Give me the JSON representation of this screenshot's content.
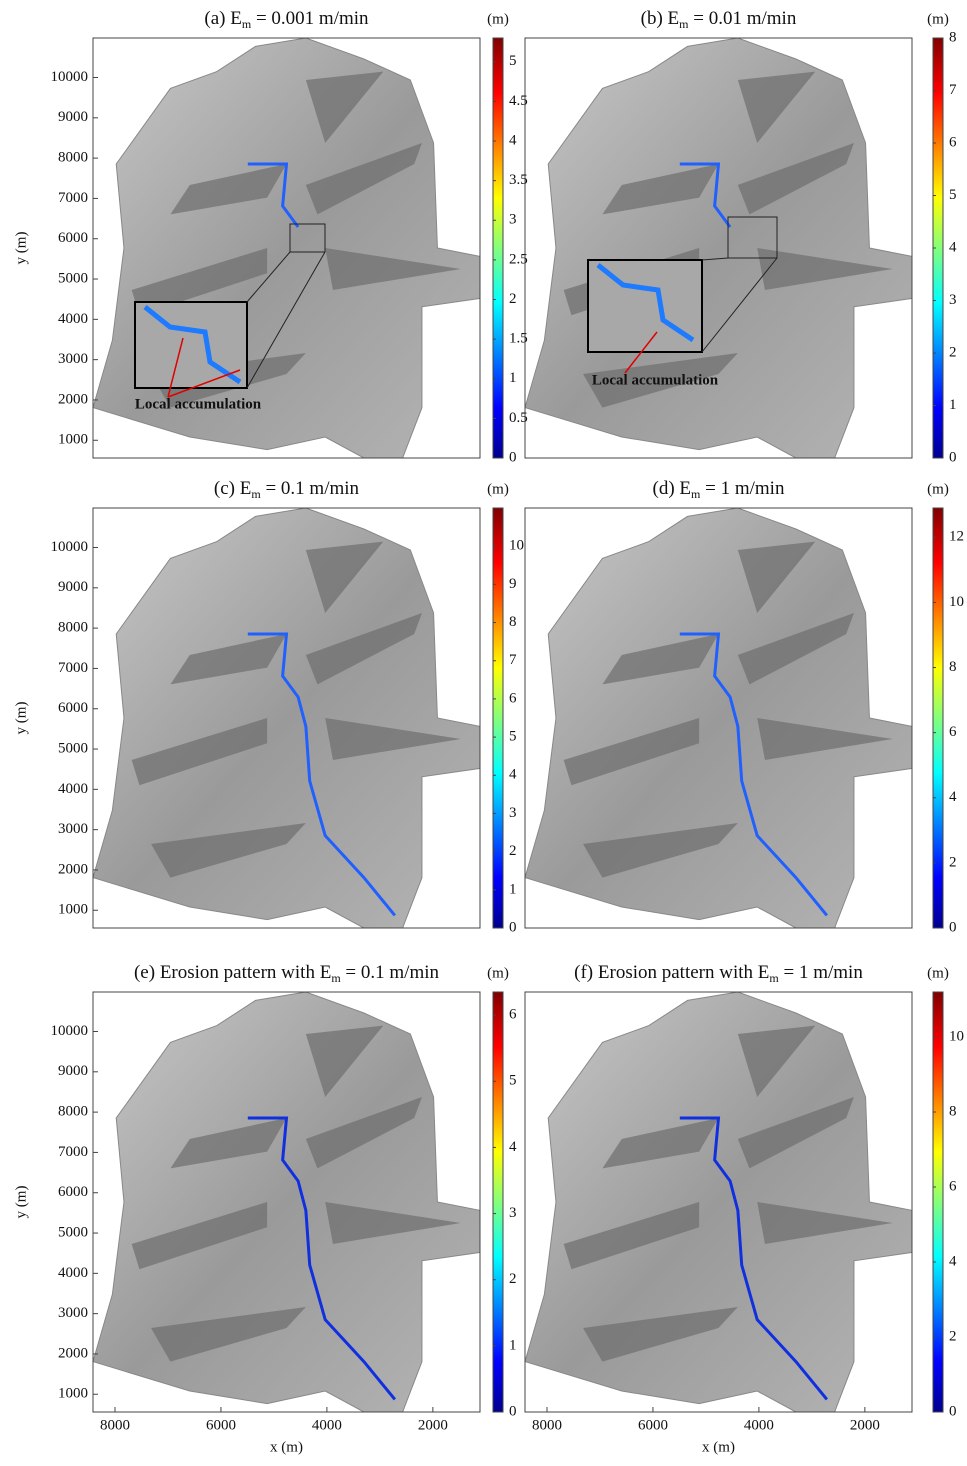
{
  "panels": [
    {
      "title": [
        "(a) E",
        "m",
        " = 0.001 m/min"
      ],
      "ylabel": "y (m)",
      "ylim": [
        560,
        10980
      ],
      "yticks": [
        1000,
        2000,
        3000,
        4000,
        5000,
        6000,
        7000,
        8000,
        9000,
        10000
      ],
      "colorbar": {
        "unit": "(m)",
        "lim": [
          0,
          5.3
        ],
        "ticks": [
          0,
          0.5,
          1,
          1.5,
          2,
          2.5,
          3,
          3.5,
          4,
          4.5,
          5
        ]
      },
      "annotation": "Local accumulation"
    },
    {
      "title": [
        "(b) E",
        "m",
        " = 0.01 m/min"
      ],
      "colorbar": {
        "unit": "(m)",
        "lim": [
          0,
          8
        ],
        "ticks": [
          0,
          1,
          2,
          3,
          4,
          5,
          6,
          7,
          8
        ]
      },
      "annotation": "Local accumulation"
    },
    {
      "title": [
        "(c) E",
        "m",
        " = 0.1 m/min"
      ],
      "ylabel": "y (m)",
      "ylim": [
        560,
        10980
      ],
      "yticks": [
        1000,
        2000,
        3000,
        4000,
        5000,
        6000,
        7000,
        8000,
        9000,
        10000
      ],
      "colorbar": {
        "unit": "(m)",
        "lim": [
          0,
          11
        ],
        "ticks": [
          0,
          1,
          2,
          3,
          4,
          5,
          6,
          7,
          8,
          9,
          10
        ]
      }
    },
    {
      "title": [
        "(d) E",
        "m",
        " = 1 m/min"
      ],
      "colorbar": {
        "unit": "(m)",
        "lim": [
          0,
          12.9
        ],
        "ticks": [
          0,
          2,
          4,
          6,
          8,
          10,
          12
        ]
      }
    },
    {
      "title": [
        "(e) Erosion pattern with E",
        "m",
        " = 0.1 m/min"
      ],
      "ylabel": "y (m)",
      "ylim": [
        560,
        10980
      ],
      "yticks": [
        1000,
        2000,
        3000,
        4000,
        5000,
        6000,
        7000,
        8000,
        9000,
        10000
      ],
      "xlabel": "x (m)",
      "xlim": [
        8415,
        1110
      ],
      "xticks": [
        8000,
        6000,
        4000,
        2000
      ],
      "colorbar": {
        "unit": "(m)",
        "lim": [
          0,
          6.35
        ],
        "ticks": [
          0,
          1,
          2,
          3,
          4,
          5,
          6
        ]
      }
    },
    {
      "title": [
        "(f) Erosion pattern with E",
        "m",
        " = 1 m/min"
      ],
      "xlabel": "x (m)",
      "xlim": [
        8415,
        1110
      ],
      "xticks": [
        8000,
        6000,
        4000,
        2000
      ],
      "colorbar": {
        "unit": "(m)",
        "lim": [
          0,
          11.2
        ],
        "ticks": [
          0,
          2,
          4,
          6,
          8,
          10
        ]
      }
    }
  ]
}
